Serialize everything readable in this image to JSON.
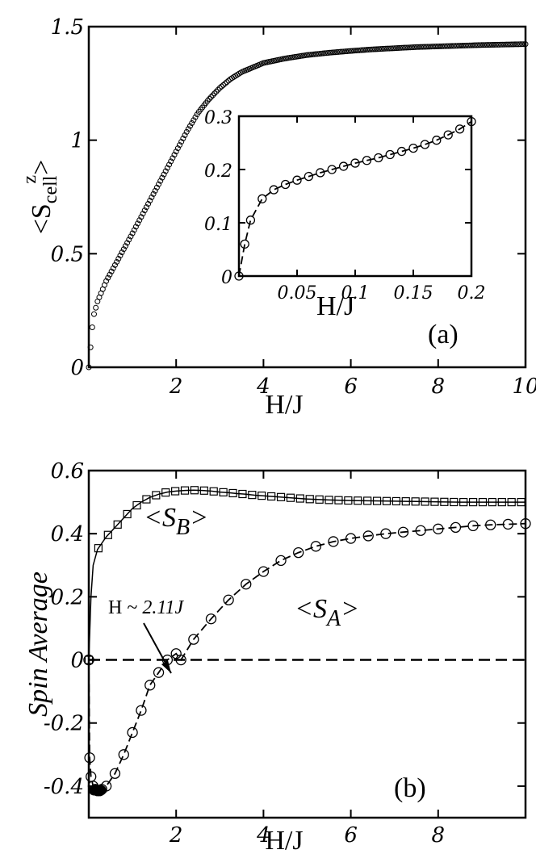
{
  "chart_data": [
    {
      "panel": "(a)",
      "type": "scatter",
      "xlabel": "H/J",
      "ylabel": "<S",
      "ylabel_sub": "cell",
      "ylabel_sup": "z",
      "ylabel_close": ">",
      "xlim": [
        0,
        10
      ],
      "ylim": [
        0,
        1.5
      ],
      "xticks": [
        0,
        2,
        4,
        6,
        8,
        10
      ],
      "yticks": [
        0,
        0.5,
        1,
        1.5
      ],
      "xtick_labels": [
        "",
        "2",
        "4",
        "6",
        "8",
        "10"
      ],
      "ytick_labels": [
        "0",
        "0.5",
        "1",
        "1.5"
      ],
      "series": [
        {
          "marker": "circle",
          "x": [
            0,
            0.1,
            0.2,
            0.4,
            0.6,
            0.8,
            1.0,
            1.25,
            1.5,
            1.75,
            2.0,
            2.25,
            2.5,
            2.75,
            3.0,
            3.25,
            3.5,
            3.75,
            4.0,
            4.5,
            5.0,
            5.5,
            6.0,
            6.5,
            7.0,
            7.5,
            8.0,
            8.5,
            9.0,
            9.5,
            10.0
          ],
          "y": [
            0,
            0.22,
            0.29,
            0.38,
            0.45,
            0.52,
            0.59,
            0.68,
            0.77,
            0.86,
            0.95,
            1.04,
            1.12,
            1.18,
            1.23,
            1.27,
            1.3,
            1.32,
            1.34,
            1.36,
            1.375,
            1.385,
            1.393,
            1.4,
            1.405,
            1.41,
            1.413,
            1.416,
            1.419,
            1.421,
            1.423
          ]
        }
      ],
      "label": "(a)",
      "inset": {
        "type": "line",
        "xlabel": "H/J",
        "xlim": [
          0,
          0.2
        ],
        "ylim": [
          0,
          0.3
        ],
        "xticks": [
          0,
          0.05,
          0.1,
          0.15,
          0.2
        ],
        "yticks": [
          0,
          0.1,
          0.2,
          0.3
        ],
        "xtick_labels": [
          "",
          "0.05",
          "0.1",
          "0.15",
          "0.2"
        ],
        "ytick_labels": [
          "0",
          "0.1",
          "0.2",
          "0.3"
        ],
        "series": [
          {
            "marker": "circle",
            "linestyle": "dashed",
            "x": [
              0,
              0.005,
              0.01,
              0.02,
              0.03,
              0.04,
              0.05,
              0.06,
              0.07,
              0.08,
              0.09,
              0.1,
              0.11,
              0.12,
              0.13,
              0.14,
              0.15,
              0.16,
              0.17,
              0.18,
              0.19,
              0.2
            ],
            "y": [
              0,
              0.06,
              0.105,
              0.145,
              0.162,
              0.172,
              0.18,
              0.187,
              0.194,
              0.2,
              0.206,
              0.212,
              0.217,
              0.222,
              0.228,
              0.234,
              0.24,
              0.247,
              0.255,
              0.265,
              0.276,
              0.29
            ]
          }
        ]
      }
    },
    {
      "panel": "(b)",
      "type": "line",
      "xlabel": "H/J",
      "ylabel": "Spin Average",
      "xlim": [
        0,
        10
      ],
      "ylim": [
        -0.5,
        0.6
      ],
      "xticks": [
        0,
        2,
        4,
        6,
        8
      ],
      "yticks": [
        -0.4,
        -0.2,
        0,
        0.2,
        0.4,
        0.6
      ],
      "xtick_labels": [
        "",
        "2",
        "4",
        "6",
        "8"
      ],
      "ytick_labels": [
        "-0.4",
        "-0.2",
        "0",
        "0.2",
        "0.4",
        "0.6"
      ],
      "series": [
        {
          "label_main": "<S",
          "label_sub": "B",
          "label_close": ">",
          "marker": "square",
          "x": [
            0,
            0.05,
            0.1,
            0.2,
            0.4,
            0.6,
            0.8,
            1.0,
            1.2,
            1.4,
            1.6,
            1.8,
            2.0,
            2.2,
            2.4,
            2.6,
            2.8,
            3.0,
            3.2,
            3.4,
            3.6,
            3.8,
            4.0,
            4.5,
            5.0,
            5.5,
            6.0,
            6.5,
            7.0,
            7.5,
            8.0,
            8.5,
            9.0,
            9.5,
            10.0
          ],
          "y": [
            0,
            0.2,
            0.3,
            0.35,
            0.39,
            0.42,
            0.45,
            0.48,
            0.5,
            0.515,
            0.525,
            0.532,
            0.535,
            0.537,
            0.538,
            0.537,
            0.535,
            0.532,
            0.53,
            0.527,
            0.525,
            0.522,
            0.52,
            0.515,
            0.51,
            0.507,
            0.505,
            0.504,
            0.503,
            0.502,
            0.501,
            0.5,
            0.5,
            0.5,
            0.5
          ]
        },
        {
          "label_main": "<S",
          "label_sub": "A",
          "label_close": ">",
          "marker": "circle",
          "linestyle": "dashed",
          "x": [
            0,
            0.02,
            0.05,
            0.1,
            0.15,
            0.2,
            0.25,
            0.3,
            0.4,
            0.6,
            0.8,
            1.0,
            1.2,
            1.4,
            1.6,
            1.8,
            2.0,
            2.11,
            2.4,
            2.8,
            3.2,
            3.6,
            4.0,
            4.4,
            4.8,
            5.2,
            5.6,
            6.0,
            6.4,
            6.8,
            7.2,
            7.6,
            8.0,
            8.4,
            8.8,
            9.2,
            9.6,
            10.0
          ],
          "y": [
            0,
            -0.31,
            -0.37,
            -0.4,
            -0.41,
            -0.415,
            -0.415,
            -0.41,
            -0.4,
            -0.36,
            -0.3,
            -0.23,
            -0.16,
            -0.08,
            -0.04,
            0.0,
            0.02,
            0.0,
            0.065,
            0.13,
            0.19,
            0.24,
            0.28,
            0.315,
            0.34,
            0.36,
            0.375,
            0.385,
            0.393,
            0.4,
            0.405,
            0.41,
            0.415,
            0.42,
            0.425,
            0.428,
            0.43,
            0.432
          ]
        },
        {
          "marker": "none",
          "linestyle": "dashed",
          "x": [
            0,
            10
          ],
          "y": [
            0,
            0
          ]
        }
      ],
      "annotation": "H ~ ",
      "annotation_value": "2.11J",
      "label": "(b)"
    }
  ]
}
